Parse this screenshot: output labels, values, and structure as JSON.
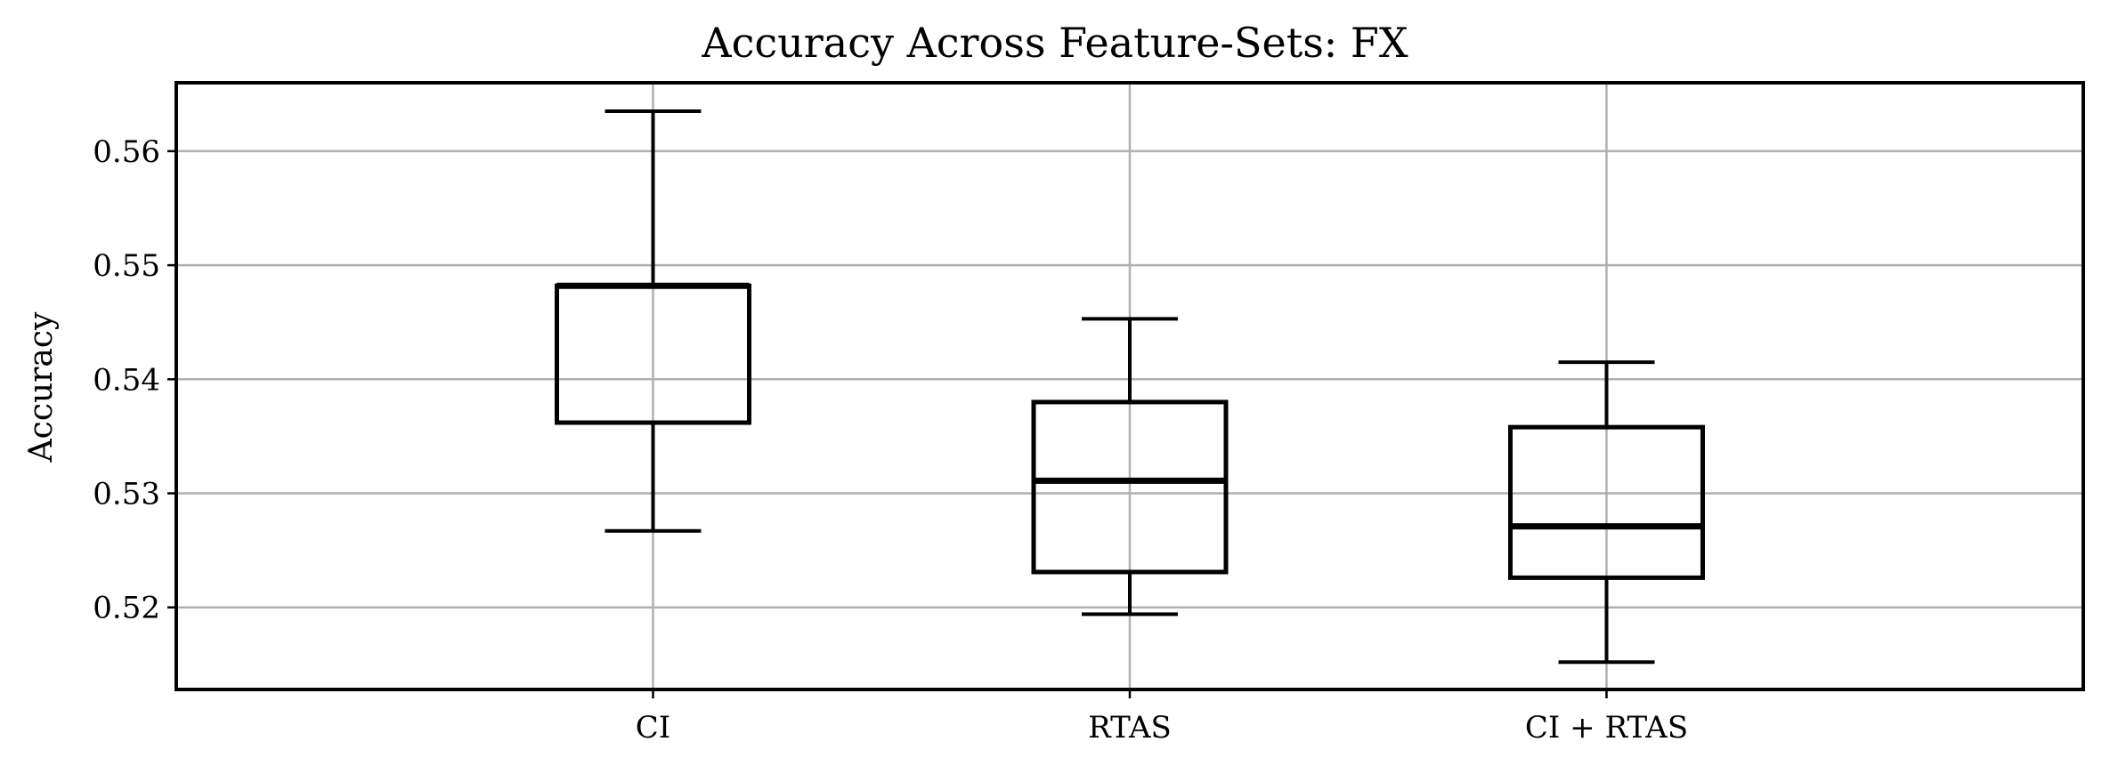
{
  "chart_data": {
    "type": "box",
    "title": "Accuracy Across Feature-Sets: FX",
    "xlabel": "",
    "ylabel": "Accuracy",
    "ylim": [
      0.5128,
      0.566
    ],
    "yticks": [
      0.52,
      0.53,
      0.54,
      0.55,
      0.56
    ],
    "ytick_labels": [
      "0.52",
      "0.53",
      "0.54",
      "0.55",
      "0.56"
    ],
    "grid": true,
    "categories": [
      "CI",
      "RTAS",
      "CI + RTAS"
    ],
    "boxes": [
      {
        "category": "CI",
        "whislo": 0.5267,
        "q1": 0.5362,
        "med": 0.5482,
        "q3": 0.5482,
        "whishi": 0.5635
      },
      {
        "category": "RTAS",
        "whislo": 0.5194,
        "q1": 0.5231,
        "med": 0.5311,
        "q3": 0.538,
        "whishi": 0.5453
      },
      {
        "category": "CI + RTAS",
        "whislo": 0.5152,
        "q1": 0.5226,
        "med": 0.5271,
        "q3": 0.5358,
        "whishi": 0.5415
      }
    ],
    "colors": {
      "box": "#000000",
      "grid": "#b0b0b0",
      "background": "#ffffff"
    }
  }
}
